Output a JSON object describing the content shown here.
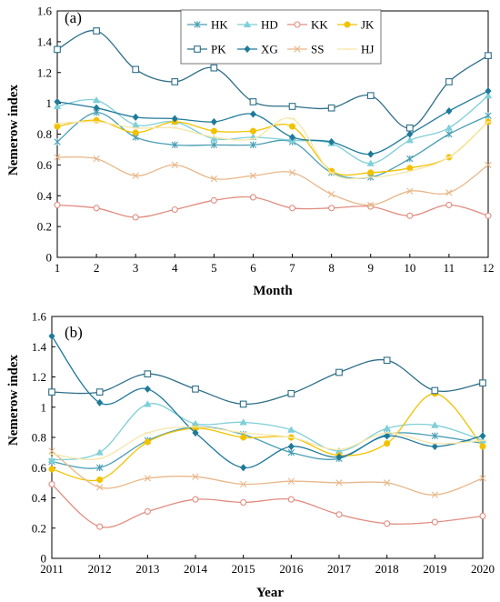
{
  "chart_data": [
    {
      "type": "line",
      "panel_label": "(a)",
      "xlabel": "Month",
      "ylabel": "Nemerow index",
      "x": [
        1,
        2,
        3,
        4,
        5,
        6,
        7,
        8,
        9,
        10,
        11,
        12
      ],
      "xticks": [
        "1",
        "2",
        "3",
        "4",
        "5",
        "6",
        "7",
        "8",
        "9",
        "10",
        "11",
        "12"
      ],
      "xlim": [
        1,
        12
      ],
      "ylim": [
        0,
        1.6
      ],
      "yticks": [
        "0",
        "0.2",
        "0.4",
        "0.6",
        "0.8",
        "1",
        "1.2",
        "1.4",
        "1.6"
      ],
      "grid": false,
      "legend": {
        "position": "top-right",
        "columns": 4
      },
      "series": [
        {
          "name": "HK",
          "color": "#4a9fb4",
          "marker": "asterisk",
          "values": [
            0.75,
            0.94,
            0.78,
            0.73,
            0.73,
            0.73,
            0.75,
            0.55,
            0.52,
            0.64,
            0.8,
            0.92
          ]
        },
        {
          "name": "HD",
          "color": "#7fcfd8",
          "marker": "triangle",
          "values": [
            0.98,
            1.02,
            0.86,
            0.88,
            0.77,
            0.78,
            0.76,
            0.74,
            0.61,
            0.76,
            0.84,
            1.05
          ]
        },
        {
          "name": "KK",
          "color": "#e08c80",
          "marker": "circle-open",
          "values": [
            0.34,
            0.32,
            0.26,
            0.31,
            0.37,
            0.39,
            0.32,
            0.32,
            0.33,
            0.27,
            0.34,
            0.27
          ]
        },
        {
          "name": "JK",
          "color": "#f2c200",
          "marker": "circle-filled",
          "values": [
            0.85,
            0.89,
            0.81,
            0.88,
            0.82,
            0.82,
            0.85,
            0.56,
            0.55,
            0.58,
            0.65,
            0.88
          ]
        },
        {
          "name": "PK",
          "color": "#2e6f88",
          "marker": "square-open",
          "values": [
            1.35,
            1.47,
            1.22,
            1.14,
            1.23,
            1.01,
            0.98,
            0.97,
            1.05,
            0.84,
            1.14,
            1.31
          ]
        },
        {
          "name": "XG",
          "color": "#1f7a9a",
          "marker": "diamond",
          "values": [
            1.01,
            0.97,
            0.91,
            0.9,
            0.88,
            0.93,
            0.78,
            0.75,
            0.67,
            0.8,
            0.95,
            1.08
          ]
        },
        {
          "name": "SS",
          "color": "#e8b88a",
          "marker": "x",
          "values": [
            0.65,
            0.64,
            0.53,
            0.6,
            0.51,
            0.53,
            0.55,
            0.41,
            0.34,
            0.43,
            0.42,
            0.6
          ]
        },
        {
          "name": "HJ",
          "color": "#f5e6a8",
          "marker": "line",
          "values": [
            0.87,
            0.88,
            0.84,
            0.84,
            0.78,
            0.77,
            0.9,
            0.55,
            0.52,
            0.56,
            0.65,
            0.88
          ]
        }
      ]
    },
    {
      "type": "line",
      "panel_label": "(b)",
      "xlabel": "Year",
      "ylabel": "Nemerow index",
      "x": [
        2011,
        2012,
        2013,
        2014,
        2015,
        2016,
        2017,
        2018,
        2019,
        2020
      ],
      "xticks": [
        "2011",
        "2012",
        "2013",
        "2014",
        "2015",
        "2016",
        "2017",
        "2018",
        "2019",
        "2020"
      ],
      "xlim": [
        2011,
        2020
      ],
      "ylim": [
        0,
        1.6
      ],
      "yticks": [
        "0",
        "0.2",
        "0.4",
        "0.6",
        "0.8",
        "1",
        "1.2",
        "1.4",
        "1.6"
      ],
      "grid": false,
      "series": [
        {
          "name": "HK",
          "color": "#4a9fb4",
          "marker": "asterisk",
          "values": [
            0.64,
            0.6,
            0.78,
            0.87,
            0.82,
            0.7,
            0.66,
            0.82,
            0.81,
            0.76
          ]
        },
        {
          "name": "HD",
          "color": "#7fcfd8",
          "marker": "triangle",
          "values": [
            0.65,
            0.7,
            1.02,
            0.89,
            0.9,
            0.85,
            0.71,
            0.86,
            0.88,
            0.78
          ]
        },
        {
          "name": "KK",
          "color": "#e08c80",
          "marker": "circle-open",
          "values": [
            0.49,
            0.21,
            0.31,
            0.39,
            0.37,
            0.39,
            0.29,
            0.23,
            0.24,
            0.28
          ]
        },
        {
          "name": "JK",
          "color": "#f2c200",
          "marker": "circle-filled",
          "values": [
            0.59,
            0.52,
            0.77,
            0.86,
            0.8,
            0.8,
            0.68,
            0.76,
            1.09,
            0.74
          ]
        },
        {
          "name": "PK",
          "color": "#2e6f88",
          "marker": "square-open",
          "values": [
            1.1,
            1.1,
            1.22,
            1.12,
            1.02,
            1.09,
            1.23,
            1.31,
            1.11,
            1.16
          ]
        },
        {
          "name": "XG",
          "color": "#1f7a9a",
          "marker": "diamond",
          "values": [
            1.47,
            1.03,
            1.12,
            0.83,
            0.6,
            0.74,
            0.67,
            0.81,
            0.74,
            0.81
          ]
        },
        {
          "name": "SS",
          "color": "#e8b88a",
          "marker": "x",
          "values": [
            0.71,
            0.47,
            0.53,
            0.54,
            0.49,
            0.51,
            0.5,
            0.5,
            0.42,
            0.53
          ]
        },
        {
          "name": "HJ",
          "color": "#f5e6a8",
          "marker": "line",
          "values": [
            0.69,
            0.66,
            0.83,
            0.87,
            0.83,
            0.8,
            0.72,
            0.83,
            0.76,
            0.78
          ]
        }
      ]
    }
  ]
}
